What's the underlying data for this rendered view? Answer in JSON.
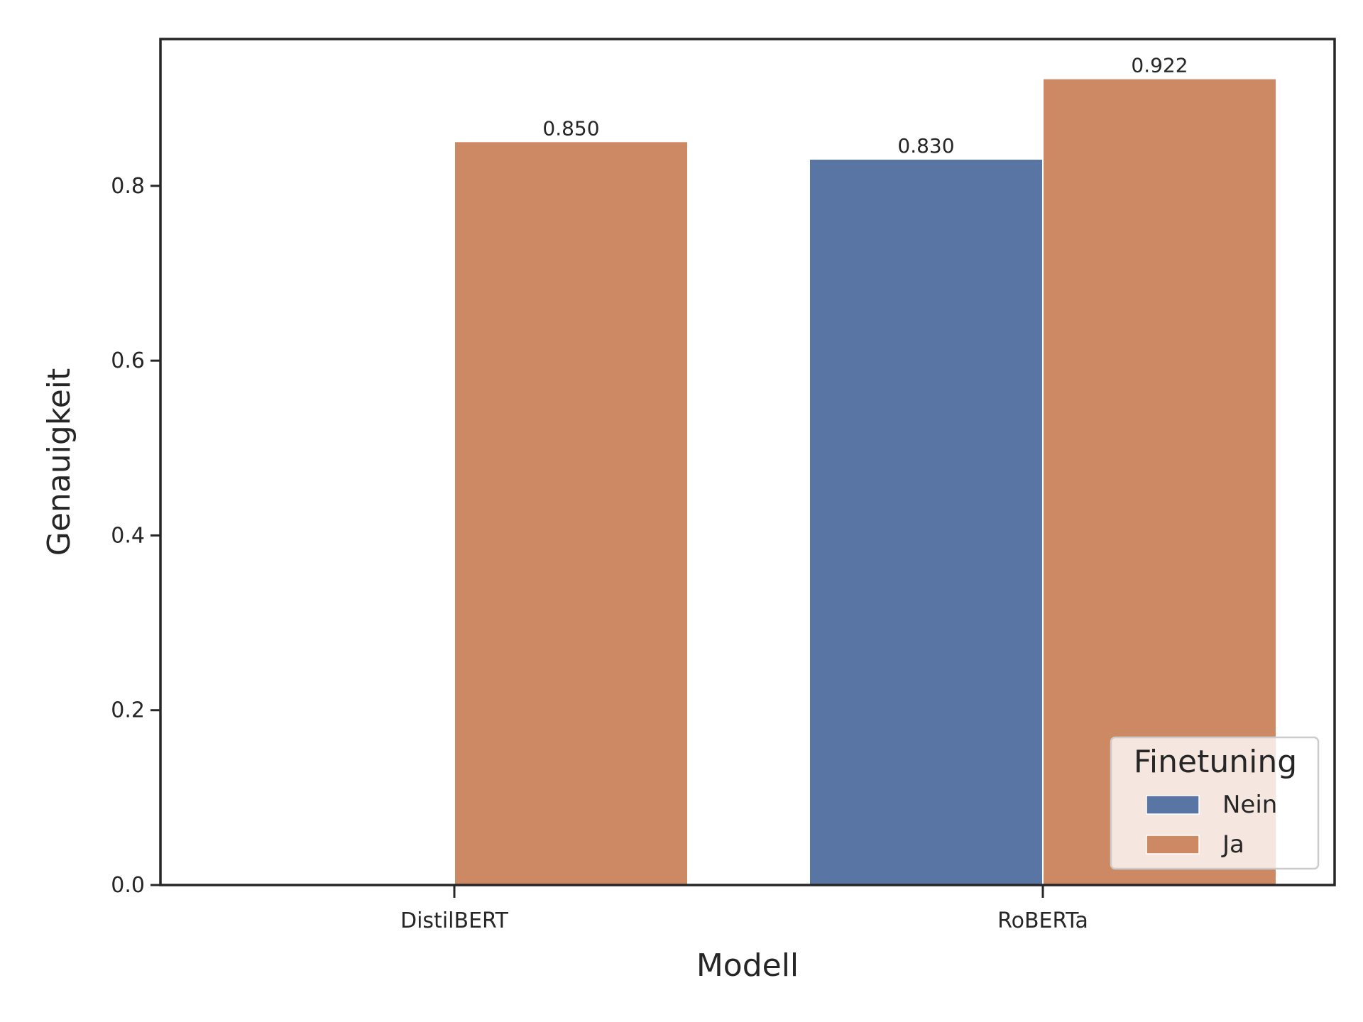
{
  "chart_data": {
    "type": "bar",
    "categories": [
      "DistilBERT",
      "RoBERTa"
    ],
    "series": [
      {
        "name": "Nein",
        "color": "#5975a4",
        "values": [
          null,
          0.83
        ]
      },
      {
        "name": "Ja",
        "color": "#cc8963",
        "values": [
          0.85,
          0.922
        ]
      }
    ],
    "data_labels": [
      [
        "",
        "0.830"
      ],
      [
        "0.850",
        "0.922"
      ]
    ],
    "xlabel": "Modell",
    "ylabel": "Genauigkeit",
    "ylim": [
      0,
      0.968
    ],
    "yticks": [
      0.0,
      0.2,
      0.4,
      0.6,
      0.8
    ],
    "ytick_labels": [
      "0.0",
      "0.2",
      "0.4",
      "0.6",
      "0.8"
    ],
    "legend": {
      "title": "Finetuning",
      "placement": "lower-right"
    },
    "grid": false
  }
}
